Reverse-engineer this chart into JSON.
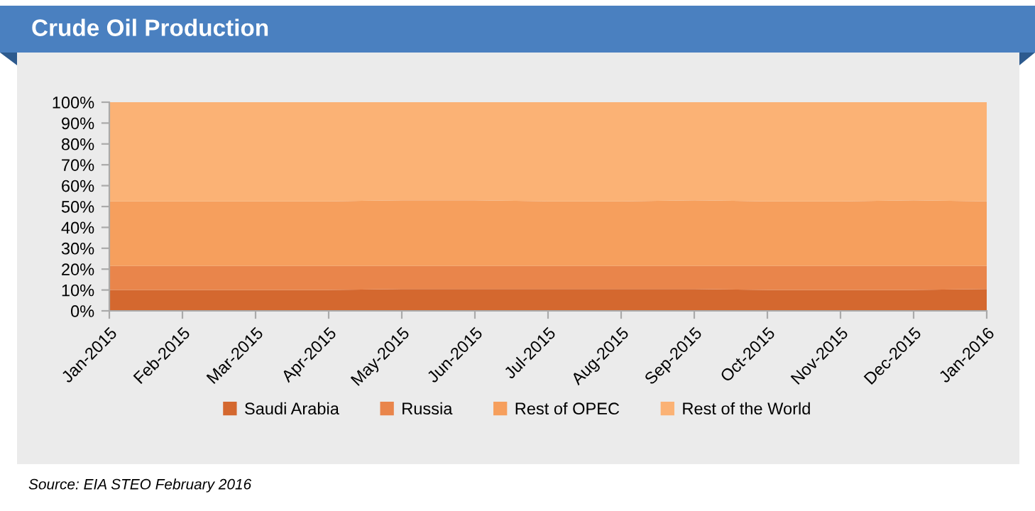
{
  "chart_data": {
    "type": "area",
    "stacked": true,
    "title": "Crude Oil Production",
    "categories": [
      "Jan-2015",
      "Feb-2015",
      "Mar-2015",
      "Apr-2015",
      "May-2015",
      "Jun-2015",
      "Jul-2015",
      "Aug-2015",
      "Sep-2015",
      "Oct-2015",
      "Nov-2015",
      "Dec-2015",
      "Jan-2016"
    ],
    "series": [
      {
        "name": "Saudi Arabia",
        "color": "#d4682f",
        "values": [
          10,
          10,
          10,
          10,
          10.5,
          10.5,
          10.5,
          10.5,
          10.5,
          10,
          10,
          10,
          10.5
        ]
      },
      {
        "name": "Russia",
        "color": "#e9854b",
        "values": [
          11.5,
          11.5,
          11.5,
          11.5,
          11,
          11,
          11,
          11,
          11,
          11.5,
          11.5,
          11.5,
          11
        ]
      },
      {
        "name": "Rest of OPEC",
        "color": "#f69f5d",
        "values": [
          31,
          31,
          31,
          31,
          31.5,
          31.5,
          31,
          31,
          31.5,
          31,
          31,
          31.5,
          31
        ]
      },
      {
        "name": "Rest of the World",
        "color": "#fbb275",
        "values": [
          47.5,
          47.5,
          47.5,
          47.5,
          47,
          47,
          47.5,
          47.5,
          47,
          47.5,
          47.5,
          47,
          47.5
        ]
      }
    ],
    "ylim": [
      0,
      100
    ],
    "yticks": [
      {
        "value": 0,
        "label": "0%"
      },
      {
        "value": 10,
        "label": "10%"
      },
      {
        "value": 20,
        "label": "20%"
      },
      {
        "value": 30,
        "label": "30%"
      },
      {
        "value": 40,
        "label": "40%"
      },
      {
        "value": 50,
        "label": "50%"
      },
      {
        "value": 60,
        "label": "60%"
      },
      {
        "value": 70,
        "label": "70%"
      },
      {
        "value": 80,
        "label": "80%"
      },
      {
        "value": 90,
        "label": "90%"
      },
      {
        "value": 100,
        "label": "100%"
      }
    ],
    "grid": false,
    "legend": "bottom",
    "annotations": [
      "Source: EIA STEO February 2016"
    ]
  }
}
